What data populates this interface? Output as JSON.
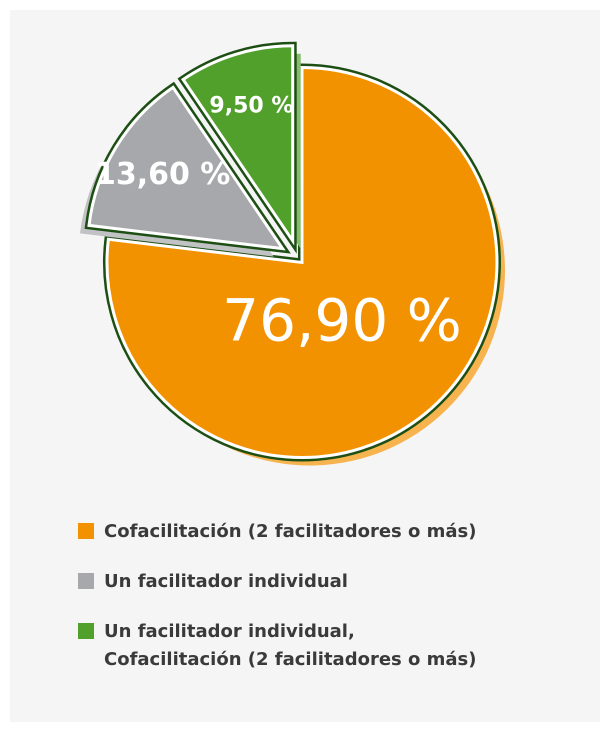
{
  "chart_data": {
    "type": "pie",
    "categories": [
      "Cofacilitación (2 facilitadores o más)",
      "Un facilitador individual",
      "Un facilitador individual,\nCofacilitación (2 facilitadores o más)"
    ],
    "values": [
      76.9,
      13.6,
      9.5
    ],
    "value_labels": [
      "76,90 %",
      "13,60 %",
      "9,50 %"
    ],
    "colors": [
      "#f39200",
      "#a7a8ab",
      "#52a02c"
    ],
    "legend": "bottom"
  }
}
